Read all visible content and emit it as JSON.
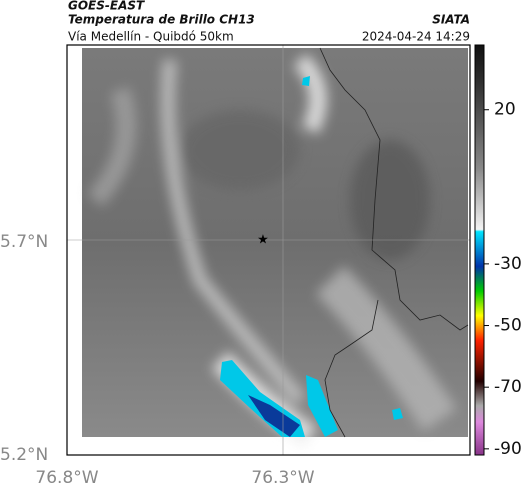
{
  "header": {
    "satellite": "GOES-EAST",
    "product": "Temperatura de Brillo CH13",
    "region": "Vía Medellín - Quibdó 50km",
    "source": "SIATA",
    "timestamp": "2024-04-24 14:29"
  },
  "map": {
    "lat_labels": [
      "5.7°N",
      "5.2°N"
    ],
    "lon_labels": [
      "76.8°W",
      "76.3°W"
    ]
  },
  "colorbar": {
    "lim": [
      -92,
      41
    ],
    "ticks": [
      20,
      -30,
      -50,
      -70,
      -90
    ]
  }
}
